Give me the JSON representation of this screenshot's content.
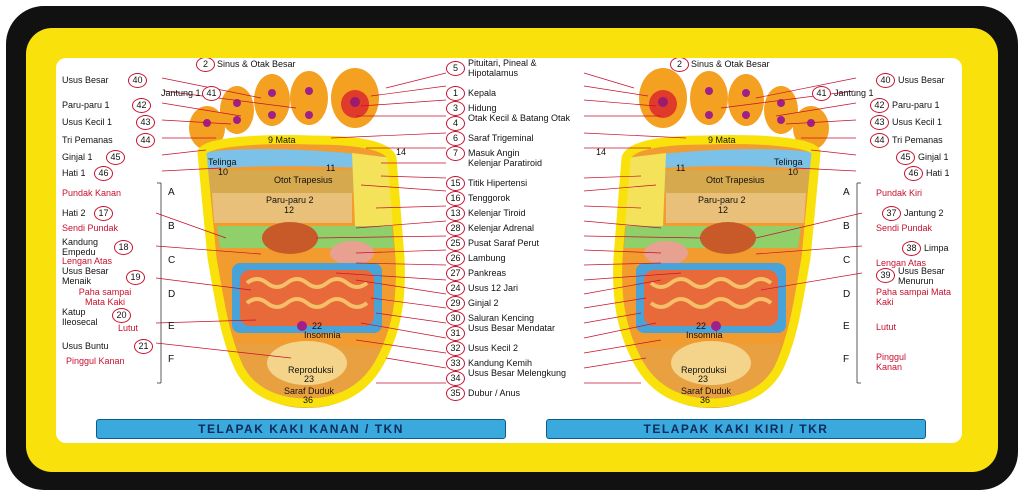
{
  "footer": {
    "left": "TELAPAK KAKI KANAN / TKN",
    "right": "TELAPAK KAKI KIRI / TKR"
  },
  "zones": [
    "A",
    "B",
    "C",
    "D",
    "E",
    "F"
  ],
  "center_labels": [
    {
      "n": "5",
      "t": "Pituitari, Pineal & Hipotalamus"
    },
    {
      "n": "1",
      "t": "Kepala"
    },
    {
      "n": "3",
      "t": "Hidung"
    },
    {
      "n": "4",
      "t": "Otak Kecil & Batang Otak"
    },
    {
      "n": "6",
      "t": "Saraf Trigeminal"
    },
    {
      "n": "7",
      "t": "Masuk Angin"
    },
    {
      "n": "",
      "t": "Kelenjar Paratiroid"
    },
    {
      "n": "15",
      "t": "Titik Hipertensi"
    },
    {
      "n": "16",
      "t": "Tenggorok"
    },
    {
      "n": "13",
      "t": "Kelenjar Tiroid"
    },
    {
      "n": "28",
      "t": "Kelenjar Adrenal"
    },
    {
      "n": "25",
      "t": "Pusat Saraf Perut"
    },
    {
      "n": "26",
      "t": "Lambung"
    },
    {
      "n": "27",
      "t": "Pankreas"
    },
    {
      "n": "24",
      "t": "Usus 12 Jari"
    },
    {
      "n": "29",
      "t": "Ginjal 2"
    },
    {
      "n": "30",
      "t": "Saluran Kencing"
    },
    {
      "n": "31",
      "t": "Usus Besar Mendatar"
    },
    {
      "n": "32",
      "t": "Usus Kecil 2"
    },
    {
      "n": "33",
      "t": "Kandung Kemih"
    },
    {
      "n": "34",
      "t": "Usus Besar Melengkung"
    },
    {
      "n": "35",
      "t": "Dubur / Anus"
    }
  ],
  "top": {
    "n": "2",
    "t": "Sinus & Otak Besar"
  },
  "left_labels": [
    {
      "n": "40",
      "t": "Usus Besar",
      "red": false
    },
    {
      "n": "41",
      "t": "Jantung 1",
      "red": false
    },
    {
      "n": "42",
      "t": "Paru-paru 1",
      "red": false
    },
    {
      "n": "43",
      "t": "Usus Kecil 1",
      "red": false
    },
    {
      "n": "44",
      "t": "Tri Pemanas",
      "red": false
    },
    {
      "n": "45",
      "t": "Ginjal 1",
      "red": false
    },
    {
      "n": "46",
      "t": "Hati 1",
      "red": false
    },
    {
      "n": "",
      "t": "Pundak Kanan",
      "red": true
    },
    {
      "n": "17",
      "t": "Hati 2",
      "red": false
    },
    {
      "n": "",
      "t": "Sendi Pundak",
      "red": true
    },
    {
      "n": "18",
      "t": "Kandung Empedu",
      "red": false
    },
    {
      "n": "",
      "t": "Lengan Atas",
      "red": true
    },
    {
      "n": "19",
      "t": "Usus Besar Menaik",
      "red": false
    },
    {
      "n": "",
      "t": "Paha sampai Mata Kaki",
      "red": true
    },
    {
      "n": "20",
      "t": "Katup Ileosecal",
      "red": false
    },
    {
      "n": "",
      "t": "Lutut",
      "red": true
    },
    {
      "n": "21",
      "t": "Usus Buntu",
      "red": false
    },
    {
      "n": "",
      "t": "Pinggul Kanan",
      "red": true
    }
  ],
  "right_labels": [
    {
      "n": "40",
      "t": "Usus Besar",
      "red": false
    },
    {
      "n": "41",
      "t": "Jantung 1",
      "red": false
    },
    {
      "n": "42",
      "t": "Paru-paru 1",
      "red": false
    },
    {
      "n": "43",
      "t": "Usus Kecil 1",
      "red": false
    },
    {
      "n": "44",
      "t": "Tri Pemanas",
      "red": false
    },
    {
      "n": "45",
      "t": "Ginjal 1",
      "red": false
    },
    {
      "n": "46",
      "t": "Hati 1",
      "red": false
    },
    {
      "n": "",
      "t": "Pundak Kiri",
      "red": true
    },
    {
      "n": "37",
      "t": "Jantung 2",
      "red": false
    },
    {
      "n": "",
      "t": "Sendi Pundak",
      "red": true
    },
    {
      "n": "38",
      "t": "Limpa",
      "red": false
    },
    {
      "n": "",
      "t": "Lengan Atas",
      "red": true
    },
    {
      "n": "39",
      "t": "Usus Besar Menurun",
      "red": false
    },
    {
      "n": "",
      "t": "Paha sampai Mata Kaki",
      "red": true
    },
    {
      "n": "",
      "t": "Lutut",
      "red": true
    },
    {
      "n": "",
      "t": "Pinggul Kanan",
      "red": true
    }
  ],
  "foot_labels": {
    "telinga": "Telinga",
    "telinga_n": "10",
    "mata": "9 Mata",
    "leher": "8 Leher",
    "n14": "14",
    "n11": "11",
    "otot": "Otot Trapesius",
    "paru": "Paru-paru 2",
    "paru_n": "12",
    "insomnia": "Insomnia",
    "insomnia_n": "22",
    "repro": "Reproduksi",
    "repro_n": "23",
    "saraf": "Saraf Duduk",
    "saraf_n": "36"
  }
}
